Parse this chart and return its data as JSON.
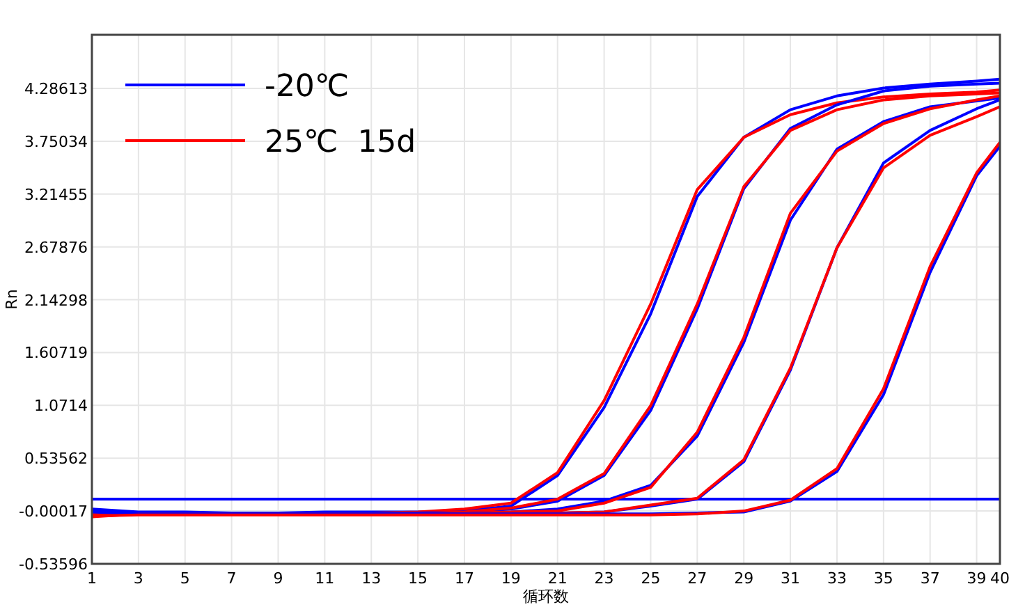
{
  "chart_data": {
    "type": "line",
    "xlabel": "循环数",
    "ylabel": "Rn",
    "xlim": [
      1,
      40
    ],
    "ylim": [
      -0.53596,
      4.83
    ],
    "xticks": [
      1,
      3,
      5,
      7,
      9,
      11,
      13,
      15,
      17,
      19,
      21,
      23,
      25,
      27,
      29,
      31,
      33,
      35,
      37,
      39,
      40
    ],
    "yticks": [
      -0.53596,
      -0.00017,
      0.53562,
      1.0714,
      1.60719,
      2.14298,
      2.67876,
      3.21455,
      3.75034,
      4.28613
    ],
    "grid": true,
    "legend": "top left",
    "marker": "none",
    "line_style": "solid",
    "x": [
      1,
      3,
      5,
      7,
      9,
      11,
      13,
      15,
      17,
      19,
      21,
      23,
      25,
      27,
      29,
      31,
      33,
      35,
      37,
      39,
      40
    ],
    "series": [
      {
        "name": "-20℃",
        "color": "#0000ff",
        "values": [
          0.02,
          -0.01,
          -0.01,
          -0.02,
          -0.02,
          -0.01,
          -0.01,
          -0.01,
          0.0,
          0.05,
          0.36,
          1.05,
          2.0,
          3.19,
          3.79,
          4.07,
          4.21,
          4.29,
          4.33,
          4.36,
          4.38
        ]
      },
      {
        "name": "25℃  15d",
        "color": "#ff0000",
        "values": [
          -0.04,
          -0.03,
          -0.03,
          -0.03,
          -0.02,
          -0.02,
          -0.02,
          -0.01,
          0.02,
          0.08,
          0.39,
          1.12,
          2.1,
          3.26,
          3.79,
          4.02,
          4.14,
          4.2,
          4.23,
          4.25,
          4.27
        ]
      },
      {
        "color": "#0000ff",
        "values": [
          -0.02,
          -0.02,
          -0.02,
          -0.02,
          -0.02,
          -0.02,
          -0.02,
          -0.02,
          -0.01,
          0.02,
          0.1,
          0.36,
          1.02,
          2.05,
          3.27,
          3.88,
          4.12,
          4.26,
          4.31,
          4.33,
          4.34
        ]
      },
      {
        "color": "#ff0000",
        "values": [
          -0.02,
          -0.03,
          -0.03,
          -0.03,
          -0.02,
          -0.02,
          -0.02,
          -0.02,
          -0.01,
          0.03,
          0.12,
          0.38,
          1.07,
          2.1,
          3.29,
          3.86,
          4.07,
          4.17,
          4.21,
          4.23,
          4.24
        ]
      },
      {
        "color": "#0000ff",
        "values": [
          -0.04,
          -0.02,
          -0.02,
          -0.02,
          -0.02,
          -0.02,
          -0.02,
          -0.02,
          -0.02,
          -0.01,
          0.02,
          0.1,
          0.26,
          0.76,
          1.71,
          2.95,
          3.67,
          3.95,
          4.1,
          4.16,
          4.19
        ]
      },
      {
        "color": "#ff0000",
        "values": [
          -0.06,
          -0.03,
          -0.03,
          -0.03,
          -0.03,
          -0.02,
          -0.02,
          -0.02,
          -0.02,
          -0.01,
          0.0,
          0.08,
          0.24,
          0.8,
          1.76,
          3.02,
          3.65,
          3.93,
          4.08,
          4.17,
          4.21
        ]
      },
      {
        "color": "#0000ff",
        "values": [
          0.0,
          -0.02,
          -0.02,
          -0.02,
          -0.02,
          -0.02,
          -0.02,
          -0.02,
          -0.02,
          -0.02,
          -0.02,
          -0.01,
          0.05,
          0.12,
          0.5,
          1.43,
          2.67,
          3.53,
          3.86,
          4.08,
          4.17
        ]
      },
      {
        "color": "#ff0000",
        "values": [
          -0.03,
          -0.03,
          -0.03,
          -0.03,
          -0.03,
          -0.03,
          -0.03,
          -0.03,
          -0.02,
          -0.02,
          -0.02,
          -0.01,
          0.06,
          0.13,
          0.52,
          1.45,
          2.67,
          3.48,
          3.81,
          4.0,
          4.1
        ]
      },
      {
        "color": "#0000ff",
        "values": [
          -0.01,
          -0.03,
          -0.03,
          -0.03,
          -0.03,
          -0.03,
          -0.03,
          -0.03,
          -0.03,
          -0.03,
          -0.03,
          -0.03,
          -0.03,
          -0.02,
          -0.01,
          0.1,
          0.4,
          1.18,
          2.42,
          3.4,
          3.7
        ]
      },
      {
        "color": "#ff0000",
        "values": [
          -0.05,
          -0.04,
          -0.04,
          -0.04,
          -0.04,
          -0.04,
          -0.04,
          -0.04,
          -0.04,
          -0.04,
          -0.04,
          -0.04,
          -0.04,
          -0.03,
          0.0,
          0.11,
          0.43,
          1.24,
          2.48,
          3.43,
          3.74
        ]
      }
    ],
    "ref_lines": [
      {
        "axis": "y",
        "value": 0.12,
        "color": "#0000ff"
      }
    ]
  }
}
